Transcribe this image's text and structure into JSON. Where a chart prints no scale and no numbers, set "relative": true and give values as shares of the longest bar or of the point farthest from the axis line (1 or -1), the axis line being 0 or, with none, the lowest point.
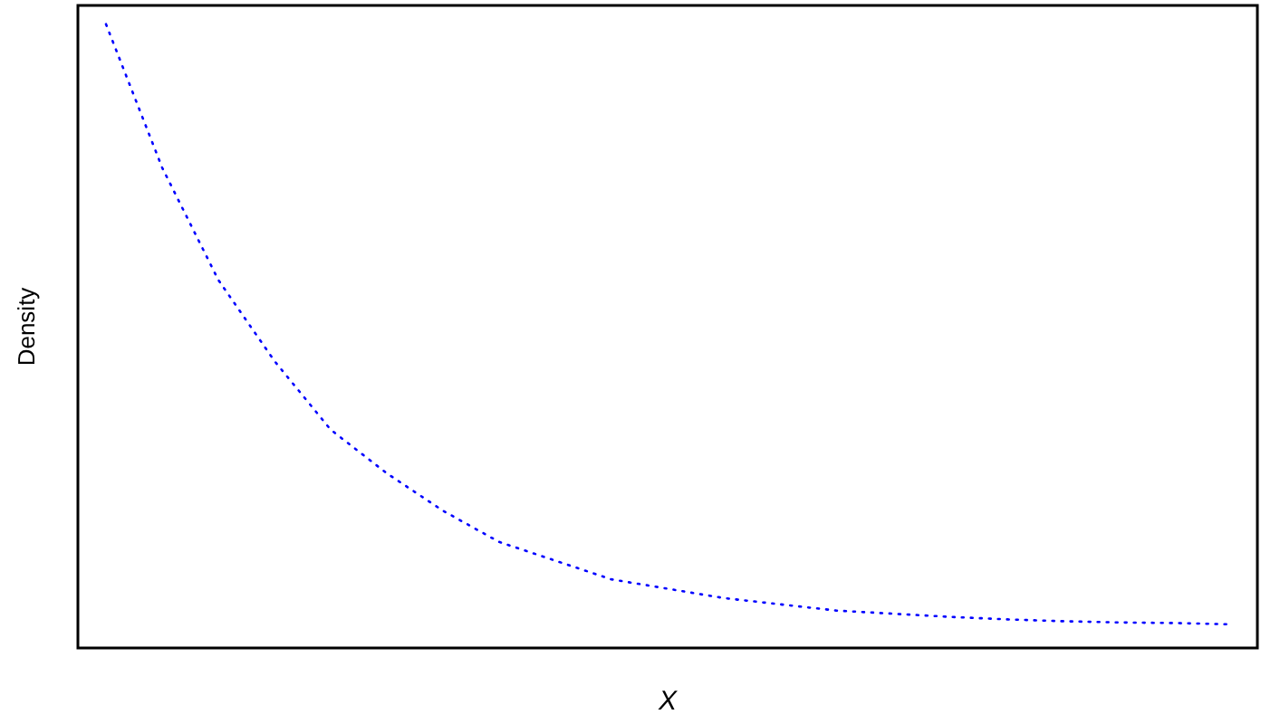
{
  "chart_data": {
    "type": "line",
    "relative": true,
    "xlabel": "X",
    "ylabel": "Density",
    "categories": [
      null,
      null,
      null,
      null,
      null,
      null,
      null,
      null,
      null,
      null,
      null,
      null,
      null,
      null,
      null,
      null,
      null,
      null,
      null,
      null,
      null
    ],
    "series": [
      {
        "color": "#0000ff",
        "values": [
          1,
          0.77,
          0.59,
          0.46,
          0.35,
          0.28,
          0.22,
          0.17,
          0.14,
          0.11,
          0.095,
          0.08,
          0.07,
          0.06,
          0.055,
          0.05,
          0.046,
          0.043,
          0.041,
          0.04,
          0.038
        ]
      }
    ],
    "line_style": "dotted",
    "marker": "none",
    "grid": false
  }
}
